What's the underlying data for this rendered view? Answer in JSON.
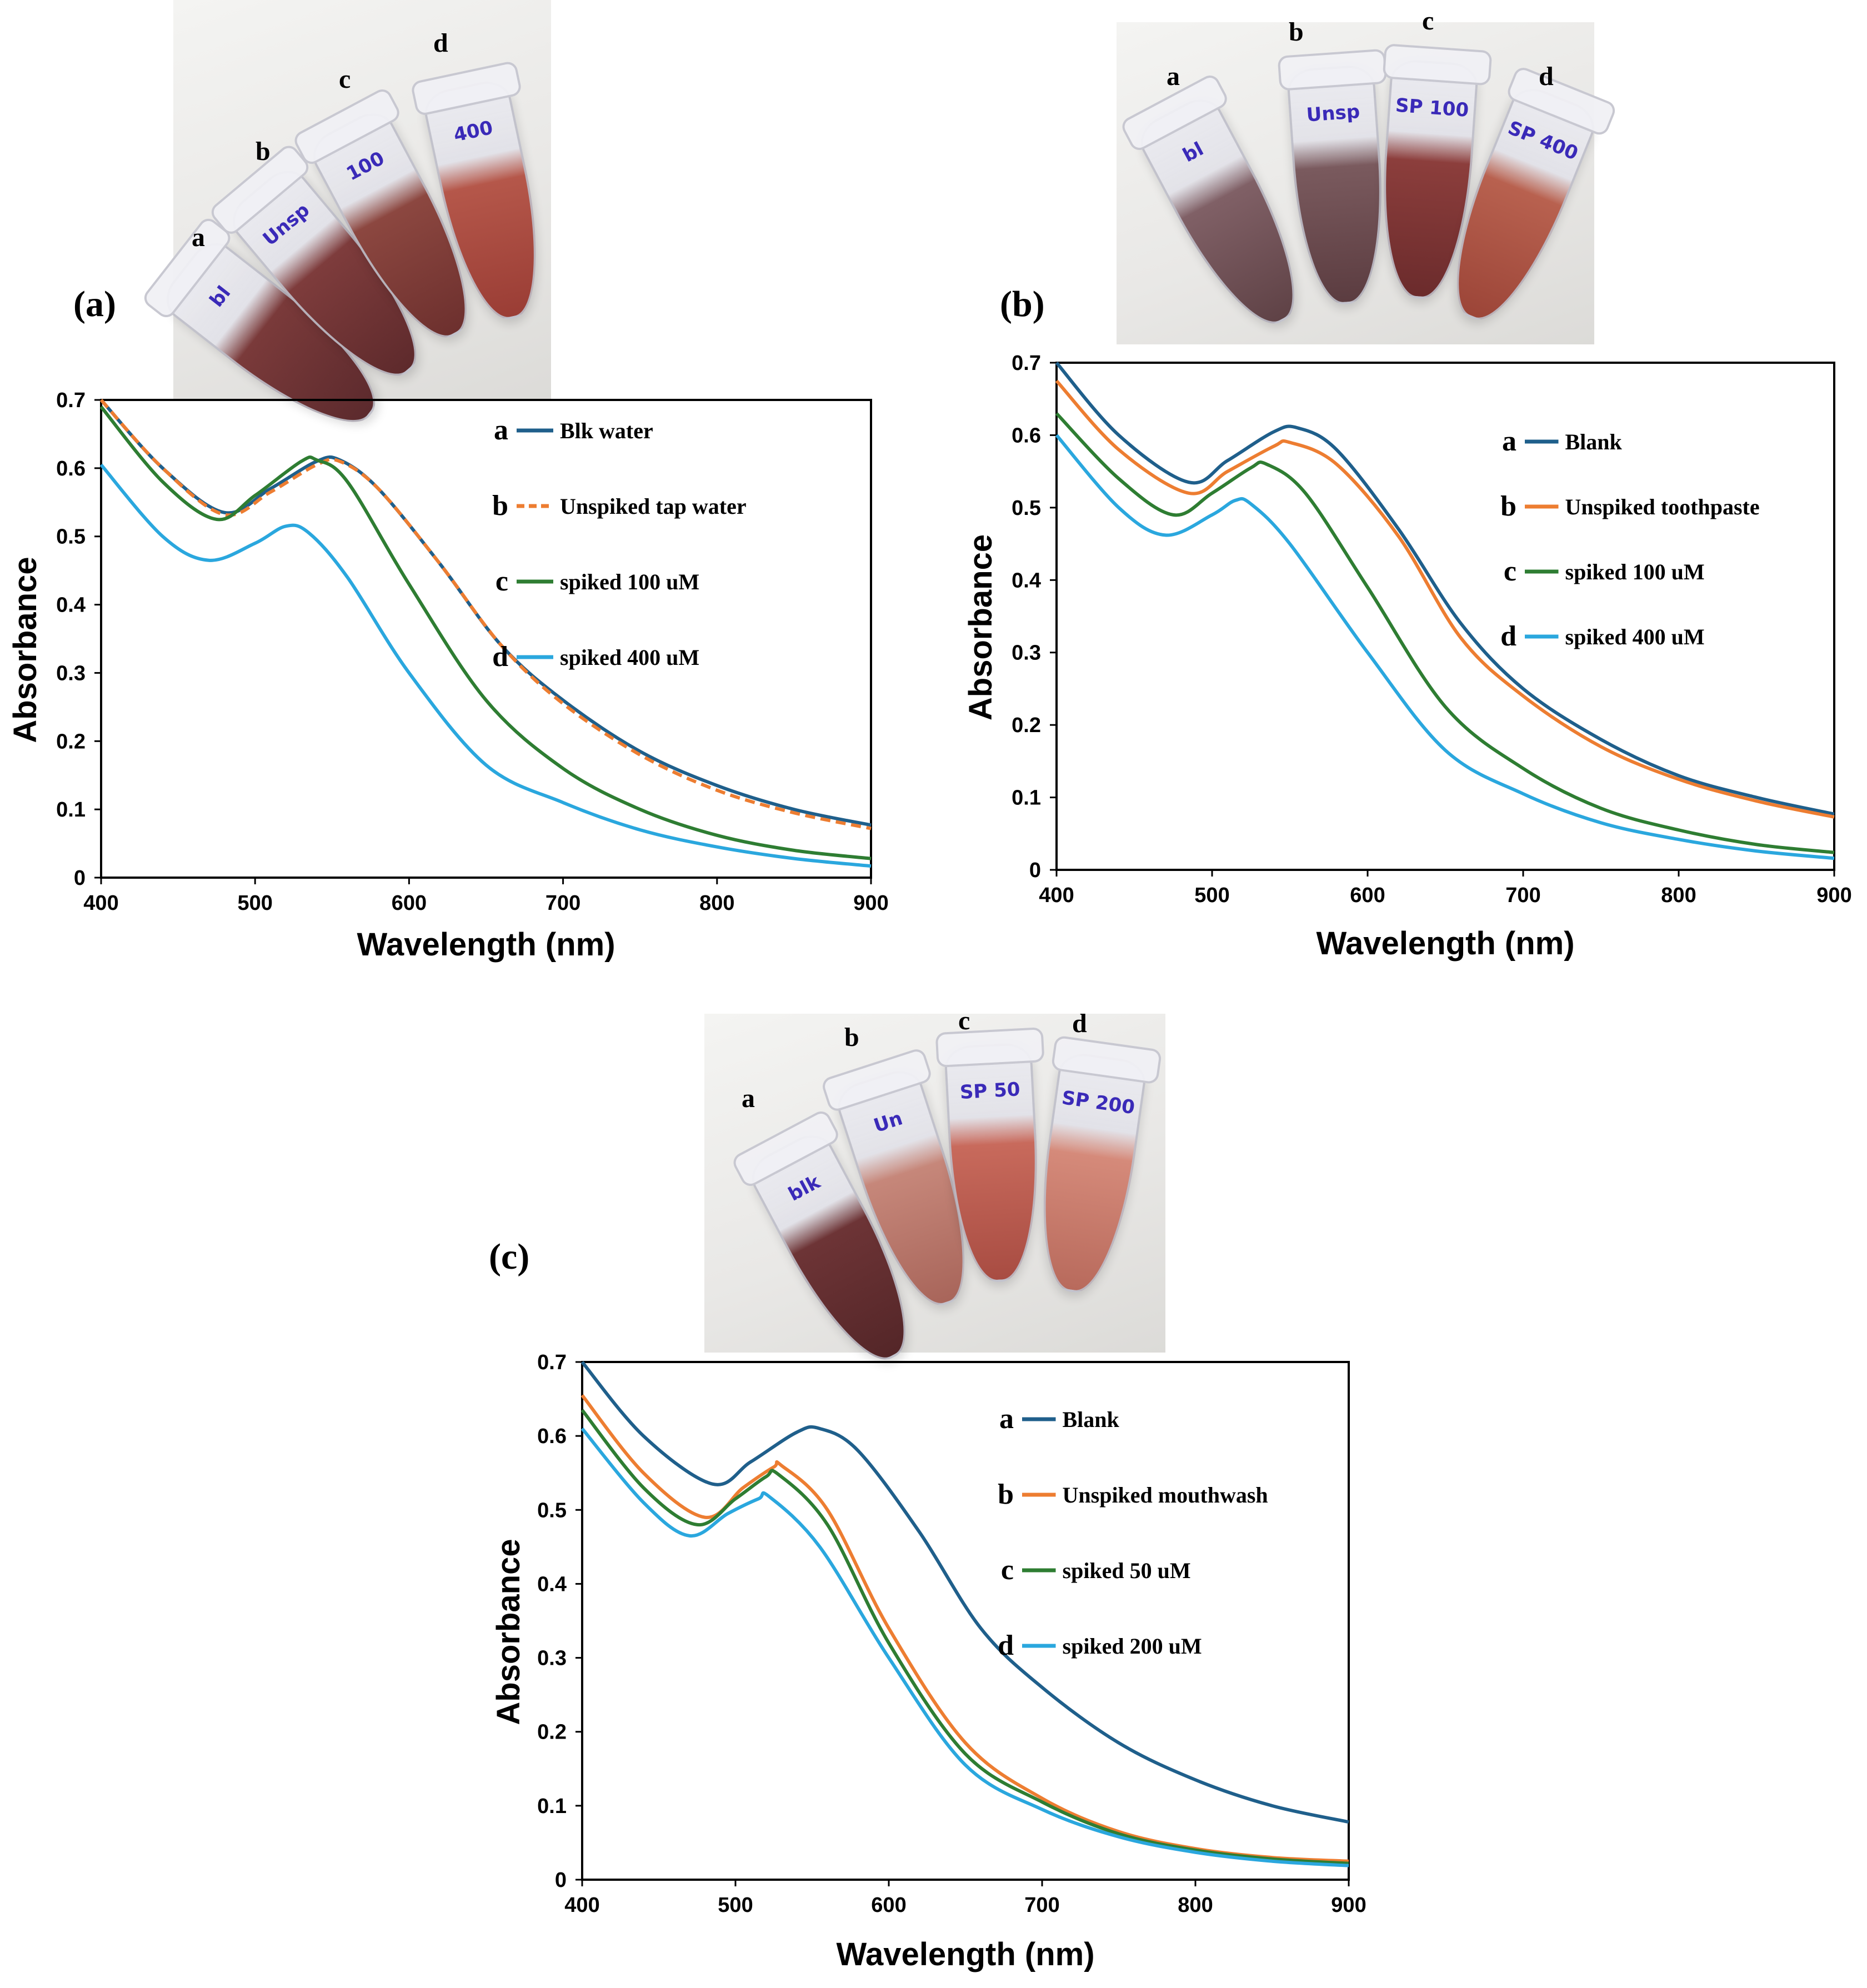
{
  "panels": [
    {
      "tag": "(a)",
      "tubes": [
        {
          "letter": "a",
          "note": "bl",
          "liq": "#7a3a3a",
          "liq2": "#5c2a2d"
        },
        {
          "letter": "b",
          "note": "Unsp",
          "liq": "#7e3c3c",
          "liq2": "#5e2a2c"
        },
        {
          "letter": "c",
          "note": "100",
          "liq": "#8c4740",
          "liq2": "#6d302e"
        },
        {
          "letter": "d",
          "note": "400",
          "liq": "#b5574a",
          "liq2": "#9a3d35"
        }
      ]
    },
    {
      "tag": "(b)",
      "tubes": [
        {
          "letter": "a",
          "note": "bl",
          "liq": "#806066",
          "liq2": "#5f4246"
        },
        {
          "letter": "b",
          "note": "Unsp",
          "liq": "#7a5a5e",
          "liq2": "#5b3c40"
        },
        {
          "letter": "c",
          "note": "SP 100",
          "liq": "#8c3e3c",
          "liq2": "#6b2b2c"
        },
        {
          "letter": "d",
          "note": "SP 400",
          "liq": "#b8614f",
          "liq2": "#9c4538"
        }
      ]
    },
    {
      "tag": "(c)",
      "tubes": [
        {
          "letter": "a",
          "note": "blk",
          "liq": "#6d3436",
          "liq2": "#542628"
        },
        {
          "letter": "b",
          "note": "Un",
          "liq": "#c6877a",
          "liq2": "#a8655a"
        },
        {
          "letter": "c",
          "note": "SP 50",
          "liq": "#c86a5c",
          "liq2": "#a84c42"
        },
        {
          "letter": "d",
          "note": "SP 200",
          "liq": "#d58a7a",
          "liq2": "#b86a5c"
        }
      ]
    }
  ],
  "chart_data": [
    {
      "type": "line",
      "xlabel": "Wavelength (nm)",
      "ylabel": "Absorbance",
      "xlim": [
        400,
        900
      ],
      "ylim": [
        0,
        0.7
      ],
      "xticks": [
        "400",
        "500",
        "600",
        "700",
        "800",
        "900"
      ],
      "yticks": [
        "0",
        "0.1",
        "0.2",
        "0.3",
        "0.4",
        "0.5",
        "0.6",
        "0.7"
      ],
      "series": [
        {
          "letter": "a",
          "name": "Blk water",
          "color": "#1f5f8b",
          "dash": false,
          "x": [
            400,
            440,
            480,
            510,
            540,
            555,
            580,
            620,
            660,
            700,
            750,
            800,
            850,
            900
          ],
          "y": [
            0.7,
            0.6,
            0.535,
            0.57,
            0.61,
            0.612,
            0.57,
            0.46,
            0.34,
            0.26,
            0.185,
            0.135,
            0.1,
            0.077
          ]
        },
        {
          "letter": "b",
          "name": "Unspiked tap water",
          "color": "#ed7d31",
          "dash": true,
          "x": [
            400,
            440,
            480,
            510,
            540,
            555,
            580,
            620,
            660,
            700,
            750,
            800,
            850,
            900
          ],
          "y": [
            0.7,
            0.6,
            0.532,
            0.565,
            0.605,
            0.61,
            0.57,
            0.46,
            0.34,
            0.255,
            0.18,
            0.128,
            0.095,
            0.072
          ]
        },
        {
          "letter": "c",
          "name": "spiked 100 uM",
          "color": "#2e7d32",
          "dash": false,
          "x": [
            400,
            440,
            475,
            500,
            530,
            540,
            560,
            600,
            650,
            700,
            750,
            800,
            850,
            900
          ],
          "y": [
            0.69,
            0.58,
            0.525,
            0.56,
            0.61,
            0.612,
            0.58,
            0.43,
            0.26,
            0.16,
            0.1,
            0.062,
            0.04,
            0.028
          ]
        },
        {
          "letter": "d",
          "name": "spiked 400 uM",
          "color": "#2aa7de",
          "dash": false,
          "x": [
            400,
            440,
            470,
            500,
            520,
            535,
            560,
            600,
            650,
            700,
            750,
            800,
            850,
            900
          ],
          "y": [
            0.605,
            0.5,
            0.465,
            0.49,
            0.515,
            0.505,
            0.44,
            0.3,
            0.165,
            0.11,
            0.07,
            0.045,
            0.028,
            0.017
          ]
        }
      ]
    },
    {
      "type": "line",
      "xlabel": "Wavelength (nm)",
      "ylabel": "Absorbance",
      "xlim": [
        400,
        900
      ],
      "ylim": [
        0,
        0.7
      ],
      "xticks": [
        "400",
        "500",
        "600",
        "700",
        "800",
        "900"
      ],
      "yticks": [
        "0",
        "0.1",
        "0.2",
        "0.3",
        "0.4",
        "0.5",
        "0.6",
        "0.7"
      ],
      "series": [
        {
          "letter": "a",
          "name": "Blank",
          "color": "#1f5f8b",
          "dash": false,
          "x": [
            400,
            440,
            485,
            510,
            540,
            555,
            580,
            620,
            660,
            700,
            750,
            800,
            850,
            900
          ],
          "y": [
            0.7,
            0.6,
            0.535,
            0.565,
            0.605,
            0.61,
            0.58,
            0.47,
            0.34,
            0.25,
            0.18,
            0.13,
            0.1,
            0.077
          ]
        },
        {
          "letter": "b",
          "name": "Unspiked toothpaste",
          "color": "#ed7d31",
          "dash": false,
          "x": [
            400,
            440,
            485,
            510,
            540,
            550,
            580,
            620,
            660,
            700,
            750,
            800,
            850,
            900
          ],
          "y": [
            0.675,
            0.58,
            0.52,
            0.55,
            0.585,
            0.59,
            0.56,
            0.46,
            0.32,
            0.24,
            0.17,
            0.125,
            0.095,
            0.073
          ]
        },
        {
          "letter": "c",
          "name": "spiked 100 uM",
          "color": "#2e7d32",
          "dash": false,
          "x": [
            400,
            440,
            475,
            500,
            525,
            535,
            560,
            600,
            650,
            700,
            750,
            800,
            850,
            900
          ],
          "y": [
            0.63,
            0.54,
            0.49,
            0.52,
            0.555,
            0.56,
            0.52,
            0.39,
            0.225,
            0.14,
            0.085,
            0.055,
            0.035,
            0.024
          ]
        },
        {
          "letter": "d",
          "name": "spiked 400 uM",
          "color": "#2aa7de",
          "dash": false,
          "x": [
            400,
            440,
            470,
            500,
            515,
            525,
            550,
            600,
            650,
            700,
            750,
            800,
            850,
            900
          ],
          "y": [
            0.6,
            0.5,
            0.462,
            0.49,
            0.51,
            0.505,
            0.45,
            0.3,
            0.165,
            0.105,
            0.065,
            0.042,
            0.026,
            0.016
          ]
        }
      ]
    },
    {
      "type": "line",
      "xlabel": "Wavelength (nm)",
      "ylabel": "Absorbance",
      "xlim": [
        400,
        900
      ],
      "ylim": [
        0,
        0.7
      ],
      "xticks": [
        "400",
        "500",
        "600",
        "700",
        "800",
        "900"
      ],
      "yticks": [
        "0",
        "0.1",
        "0.2",
        "0.3",
        "0.4",
        "0.5",
        "0.6",
        "0.7"
      ],
      "series": [
        {
          "letter": "a",
          "name": "Blank",
          "color": "#1f5f8b",
          "dash": false,
          "x": [
            400,
            440,
            485,
            510,
            540,
            555,
            580,
            620,
            660,
            700,
            750,
            800,
            850,
            900
          ],
          "y": [
            0.7,
            0.6,
            0.535,
            0.565,
            0.605,
            0.61,
            0.58,
            0.47,
            0.34,
            0.26,
            0.185,
            0.135,
            0.1,
            0.078
          ]
        },
        {
          "letter": "b",
          "name": "Unspiked mouthwash",
          "color": "#ed7d31",
          "dash": false,
          "x": [
            400,
            440,
            480,
            505,
            525,
            530,
            560,
            600,
            650,
            700,
            750,
            800,
            850,
            900
          ],
          "y": [
            0.655,
            0.55,
            0.49,
            0.53,
            0.558,
            0.56,
            0.5,
            0.34,
            0.185,
            0.11,
            0.065,
            0.042,
            0.03,
            0.025
          ]
        },
        {
          "letter": "c",
          "name": "spiked 50 uM",
          "color": "#2e7d32",
          "dash": false,
          "x": [
            400,
            440,
            475,
            500,
            520,
            528,
            560,
            600,
            650,
            700,
            750,
            800,
            850,
            900
          ],
          "y": [
            0.635,
            0.53,
            0.48,
            0.515,
            0.545,
            0.548,
            0.48,
            0.32,
            0.17,
            0.105,
            0.062,
            0.04,
            0.028,
            0.022
          ]
        },
        {
          "letter": "d",
          "name": "spiked 200 uM",
          "color": "#2aa7de",
          "dash": false,
          "x": [
            400,
            440,
            470,
            495,
            515,
            522,
            555,
            600,
            650,
            700,
            750,
            800,
            850,
            900
          ],
          "y": [
            0.61,
            0.51,
            0.465,
            0.495,
            0.515,
            0.518,
            0.45,
            0.3,
            0.155,
            0.095,
            0.058,
            0.037,
            0.025,
            0.019
          ]
        }
      ]
    }
  ]
}
